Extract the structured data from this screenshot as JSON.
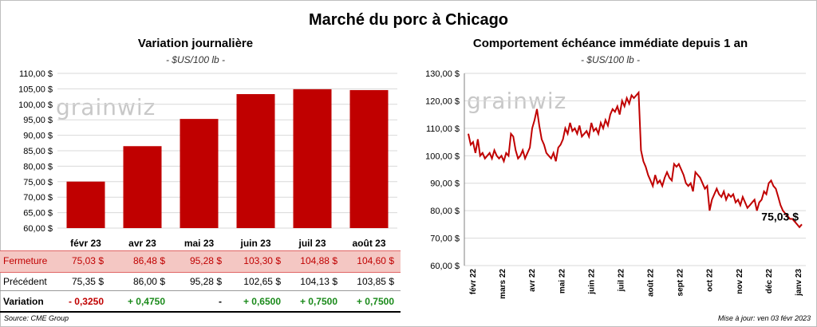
{
  "title": "Marché du porc à Chicago",
  "colors": {
    "bar": "#c00000",
    "line": "#c00000",
    "grid": "#d9d9d9",
    "close_bg": "#f4c7c3"
  },
  "watermark": "grainwiz",
  "footer": {
    "source": "Source: CME Group",
    "updated": "Mise à jour: ven 03 févr 2023"
  },
  "chart_data": [
    {
      "type": "bar",
      "title": "Variation journalière",
      "unit": "- $US/100 lb -",
      "categories": [
        "févr 23",
        "avr 23",
        "mai 23",
        "juin 23",
        "juil 23",
        "août 23"
      ],
      "values": [
        75.03,
        86.48,
        95.28,
        103.3,
        104.88,
        104.6
      ],
      "ylim": [
        60,
        110
      ],
      "yticks": [
        "60,00 $",
        "65,00 $",
        "70,00 $",
        "75,00 $",
        "80,00 $",
        "85,00 $",
        "90,00 $",
        "95,00 $",
        "100,00 $",
        "105,00 $",
        "110,00 $"
      ]
    },
    {
      "type": "line",
      "title": "Comportement  échéance immédiate depuis 1 an",
      "unit": "- $US/100 lb -",
      "xlabels": [
        "févr 22",
        "mars 22",
        "avr 22",
        "mai 22",
        "juin 22",
        "juil 22",
        "août 22",
        "sept 22",
        "oct 22",
        "nov 22",
        "déc 22",
        "janv 23"
      ],
      "ylim": [
        60,
        130
      ],
      "yticks": [
        "60,00 $",
        "70,00 $",
        "80,00 $",
        "90,00 $",
        "100,00 $",
        "110,00 $",
        "120,00 $",
        "130,00 $"
      ],
      "series": [
        {
          "name": "Échéance immédiate",
          "values": [
            108,
            104,
            105,
            101,
            106,
            100,
            101,
            99,
            100,
            101,
            99,
            102,
            100,
            99,
            100,
            98,
            101,
            100,
            108,
            107,
            102,
            99,
            100,
            102,
            99,
            101,
            103,
            110,
            113,
            117,
            111,
            106,
            104,
            101,
            100,
            99,
            101,
            98,
            103,
            104,
            106,
            110,
            108,
            112,
            109,
            110,
            108,
            111,
            107,
            108,
            109,
            107,
            112,
            109,
            110,
            108,
            112,
            110,
            113,
            111,
            115,
            117,
            116,
            118,
            115,
            120,
            118,
            121,
            119,
            122,
            121,
            122,
            123,
            102,
            98,
            96,
            93,
            91,
            89,
            93,
            90,
            91,
            89,
            92,
            94,
            92,
            91,
            97,
            96,
            97,
            95,
            93,
            90,
            89,
            90,
            87,
            94,
            93,
            92,
            90,
            88,
            89,
            80,
            84,
            86,
            88,
            86,
            85,
            87,
            84,
            86,
            85,
            86,
            83,
            84,
            82,
            85,
            83,
            81,
            82,
            83,
            84,
            80,
            83,
            84,
            87,
            86,
            90,
            91,
            89,
            88,
            85,
            82,
            80,
            79,
            78,
            77,
            77,
            76,
            75,
            74,
            75.03
          ]
        }
      ],
      "last_label": "75,03 $"
    }
  ],
  "table": {
    "rows": [
      {
        "label": "Fermeture",
        "values": [
          "75,03  $",
          "86,48  $",
          "95,28  $",
          "103,30  $",
          "104,88  $",
          "104,60  $"
        ]
      },
      {
        "label": "Précédent",
        "values": [
          "75,35  $",
          "86,00  $",
          "95,28  $",
          "102,65  $",
          "104,13  $",
          "103,85  $"
        ]
      },
      {
        "label": "Variation",
        "values": [
          "- 0,3250",
          "+ 0,4750",
          "-",
          "+ 0,6500",
          "+ 0,7500",
          "+ 0,7500"
        ]
      }
    ]
  }
}
